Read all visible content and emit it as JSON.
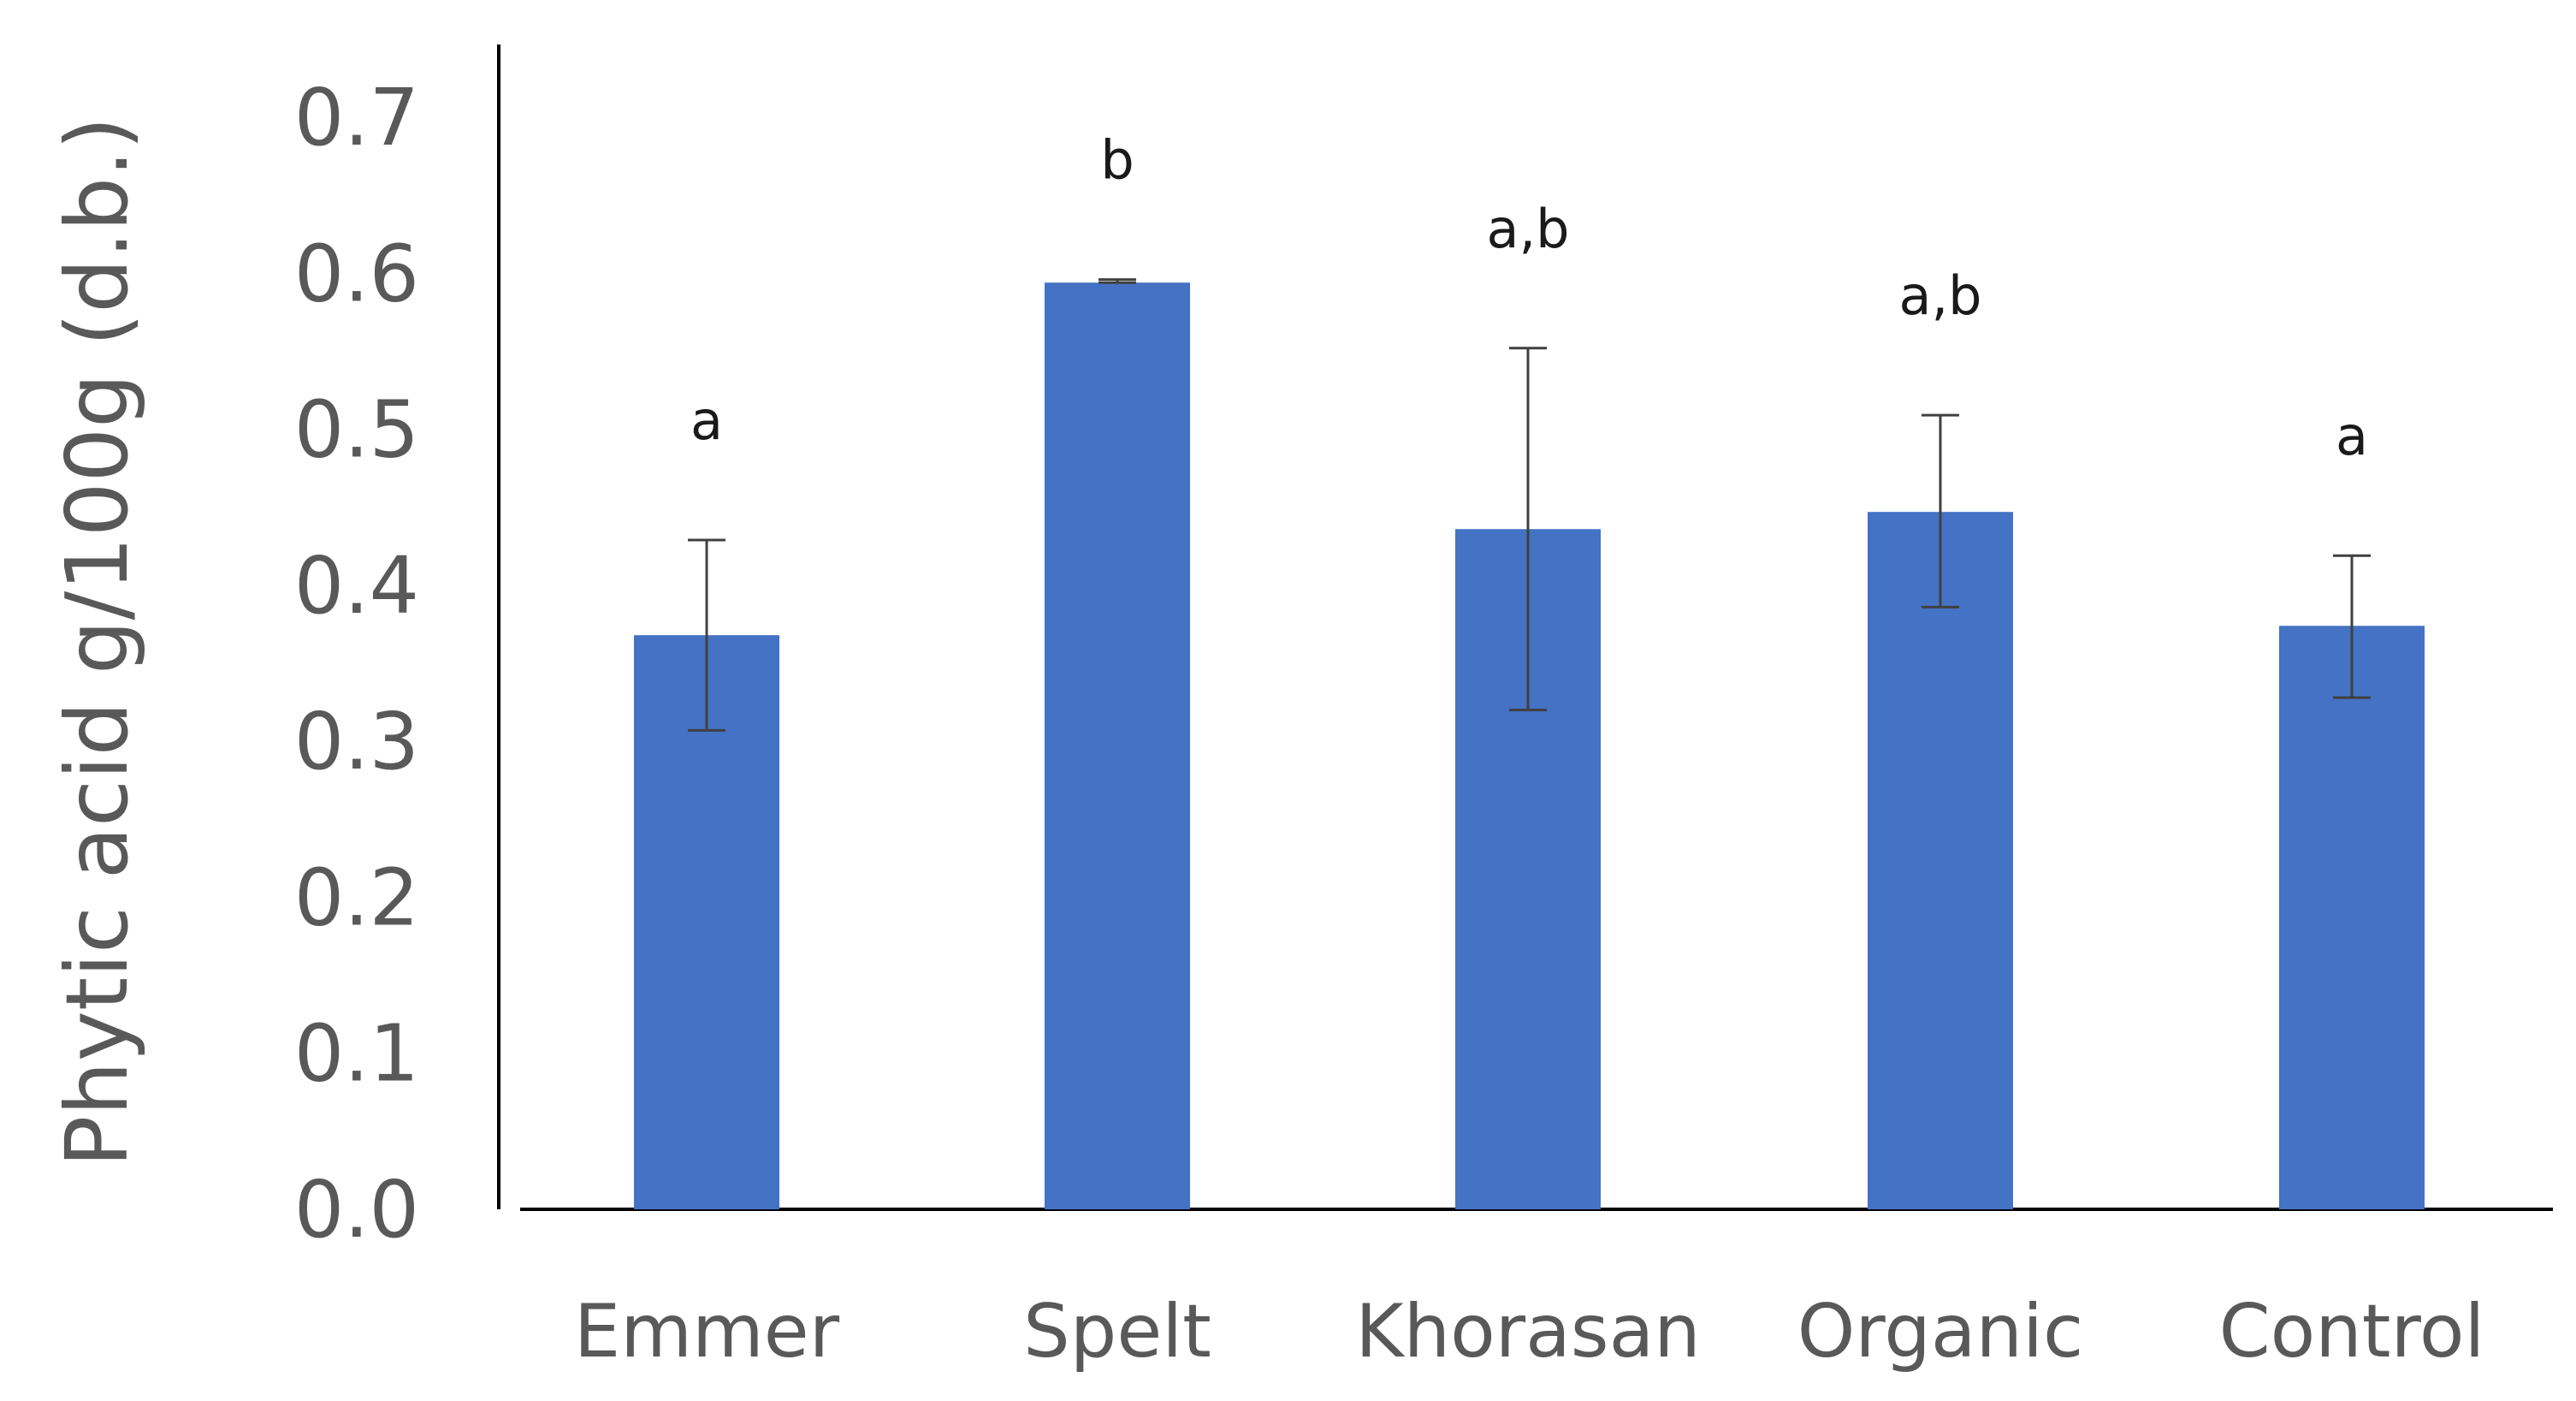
{
  "chart_data": {
    "type": "bar",
    "title": "",
    "xlabel": "",
    "ylabel": "Phytic acid g/100g (d.b.)",
    "ylim": [
      0.0,
      0.7
    ],
    "yticks": [
      "0.0",
      "0.1",
      "0.2",
      "0.3",
      "0.4",
      "0.5",
      "0.6",
      "0.7"
    ],
    "categories": [
      "Emmer",
      "Spelt",
      "Khorasan",
      "Organic",
      "Control"
    ],
    "values": [
      0.368,
      0.594,
      0.436,
      0.447,
      0.374
    ],
    "error_low": [
      0.307,
      0.594,
      0.32,
      0.386,
      0.328
    ],
    "error_high": [
      0.429,
      0.596,
      0.552,
      0.509,
      0.419
    ],
    "significance": [
      "a",
      "b",
      "a,b",
      "a,b",
      "a"
    ],
    "colors": {
      "bar": "#4472C4",
      "axis": "#000000",
      "error": "#404040"
    },
    "grid": false,
    "legend": "none"
  }
}
